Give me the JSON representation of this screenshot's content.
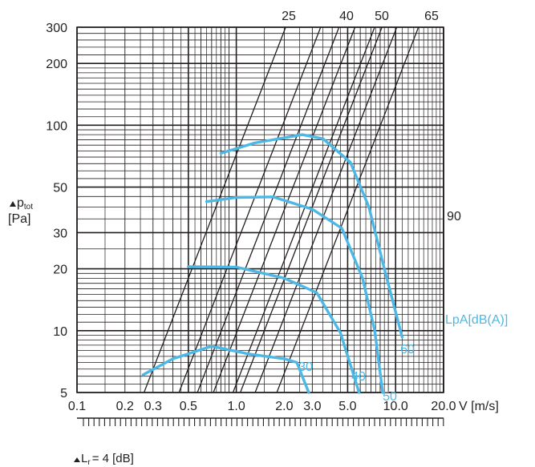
{
  "chart_data": {
    "type": "line",
    "x_axis": {
      "label": "V [m/s]",
      "scale": "log",
      "range": [
        0.1,
        20.0
      ],
      "tick_labels": [
        "0.1",
        "0.2",
        "0.3",
        "0.5",
        "1.0",
        "2.0",
        "3.0",
        "5.0",
        "10.0",
        "20.0"
      ]
    },
    "y_axis": {
      "label_main": "p",
      "label_sub": "tot",
      "label_unit": "[Pa]",
      "scale": "log",
      "range": [
        5,
        300
      ],
      "tick_labels": [
        "5",
        "10",
        "20",
        "30",
        "50",
        "100",
        "200",
        "300"
      ]
    },
    "grid": true,
    "diagonal_lines": [
      {
        "label": "25",
        "y_at_x1": 5.5
      },
      {
        "label": "40",
        "y_at_x1": 9.7
      },
      {
        "label": "50",
        "y_at_x1": 15.4
      },
      {
        "label": "65",
        "y_at_x1": 26.2
      },
      {
        "label": "90",
        "y_at_x1": 72
      },
      {
        "label": "",
        "y_at_x1": 1.55
      },
      {
        "label": "",
        "y_at_x1": 2.9
      },
      {
        "label": "",
        "y_at_x1": 4.45
      }
    ],
    "series": [
      {
        "name": "30",
        "points": [
          [
            0.26,
            6.1
          ],
          [
            0.4,
            7.3
          ],
          [
            0.7,
            8.4
          ],
          [
            1.2,
            7.7
          ],
          [
            2.0,
            7.3
          ],
          [
            2.4,
            7.0
          ],
          [
            2.85,
            5.0
          ]
        ]
      },
      {
        "name": "40",
        "points": [
          [
            0.5,
            20.5
          ],
          [
            1.0,
            20.4
          ],
          [
            2.0,
            18.0
          ],
          [
            3.2,
            15.3
          ],
          [
            4.5,
            9.8
          ],
          [
            5.9,
            5.0
          ]
        ]
      },
      {
        "name": "50",
        "points": [
          [
            0.65,
            42.5
          ],
          [
            1.0,
            44.5
          ],
          [
            1.7,
            44.8
          ],
          [
            3.0,
            39.0
          ],
          [
            4.6,
            31.5
          ],
          [
            6.2,
            18.0
          ],
          [
            7.4,
            10.0
          ],
          [
            8.3,
            5.0
          ]
        ]
      },
      {
        "name": "60",
        "points": [
          [
            0.8,
            73
          ],
          [
            1.3,
            82
          ],
          [
            2.6,
            90
          ],
          [
            3.5,
            86
          ],
          [
            5.2,
            66
          ],
          [
            6.8,
            40
          ],
          [
            8.5,
            20
          ],
          [
            11.0,
            9.3
          ]
        ]
      }
    ],
    "legend_title": "LpA[dB(A)]",
    "bottom_scale_label": "L",
    "bottom_scale_sub": "r",
    "bottom_scale_value": "= 4 [dB]"
  }
}
